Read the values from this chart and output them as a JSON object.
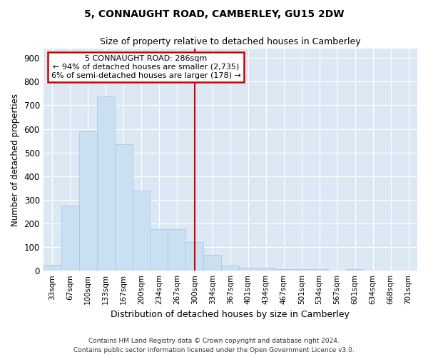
{
  "title": "5, CONNAUGHT ROAD, CAMBERLEY, GU15 2DW",
  "subtitle": "Size of property relative to detached houses in Camberley",
  "xlabel": "Distribution of detached houses by size in Camberley",
  "ylabel": "Number of detached properties",
  "bar_labels": [
    "33sqm",
    "67sqm",
    "100sqm",
    "133sqm",
    "167sqm",
    "200sqm",
    "234sqm",
    "267sqm",
    "300sqm",
    "334sqm",
    "367sqm",
    "401sqm",
    "434sqm",
    "467sqm",
    "501sqm",
    "534sqm",
    "567sqm",
    "601sqm",
    "634sqm",
    "668sqm",
    "701sqm"
  ],
  "bar_values": [
    25,
    275,
    593,
    738,
    535,
    338,
    175,
    175,
    120,
    68,
    22,
    12,
    12,
    7,
    7,
    7,
    0,
    8,
    0,
    0,
    0
  ],
  "bar_color": "#c9dff2",
  "bar_edge_color": "#a8c4dc",
  "annotation_title": "5 CONNAUGHT ROAD: 286sqm",
  "annotation_line1": "← 94% of detached houses are smaller (2,735)",
  "annotation_line2": "6% of semi-detached houses are larger (178) →",
  "annotation_box_color": "#ffffff",
  "annotation_box_edge": "#cc0000",
  "vline_color": "#cc0000",
  "ylim": [
    0,
    940
  ],
  "yticks": [
    0,
    100,
    200,
    300,
    400,
    500,
    600,
    700,
    800,
    900
  ],
  "background_color": "#dce9f5",
  "grid_color": "#ffffff",
  "footer_line1": "Contains HM Land Registry data © Crown copyright and database right 2024.",
  "footer_line2": "Contains public sector information licensed under the Open Government Licence v3.0."
}
